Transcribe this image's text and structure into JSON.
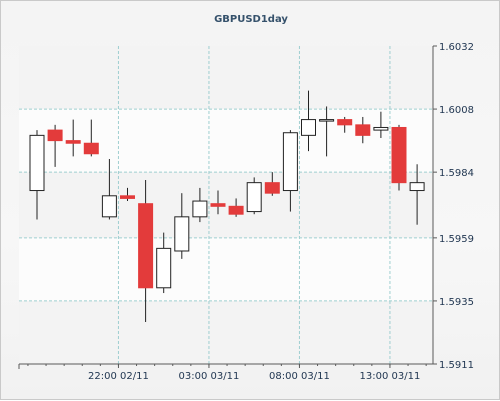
{
  "chart_data": {
    "type": "candlestick",
    "title": "GBPUSD1day",
    "y_axis_position": "right",
    "ylim": [
      1.5911,
      1.6032
    ],
    "y_ticks": [
      "1.6032",
      "1.6008",
      "1.5984",
      "1.5959",
      "1.5935",
      "1.5911"
    ],
    "x_tick_labels": [
      {
        "label": "22:00 02/11",
        "after_candle": 4.5
      },
      {
        "label": "03:00 03/11",
        "after_candle": 9.5
      },
      {
        "label": "08:00 03/11",
        "after_candle": 14.5
      },
      {
        "label": "13:00 03/11",
        "after_candle": 19.5
      }
    ],
    "grid": true,
    "colors": {
      "up_fill": "#ffffff",
      "down_fill": "#e33b3b",
      "wick": "#222222",
      "grid": "#9fcfd0",
      "plot_bg": "#fcfcfc",
      "band": "#f3f3f3",
      "axis": "#5a5a5a"
    },
    "candles": [
      {
        "open": 1.5977,
        "high": 1.6,
        "low": 1.5966,
        "close": 1.5998
      },
      {
        "open": 1.6,
        "high": 1.6002,
        "low": 1.5986,
        "close": 1.5996
      },
      {
        "open": 1.5996,
        "high": 1.6004,
        "low": 1.599,
        "close": 1.5995
      },
      {
        "open": 1.5995,
        "high": 1.6004,
        "low": 1.599,
        "close": 1.5991
      },
      {
        "open": 1.5967,
        "high": 1.5989,
        "low": 1.5966,
        "close": 1.5975
      },
      {
        "open": 1.5975,
        "high": 1.5978,
        "low": 1.5973,
        "close": 1.5974
      },
      {
        "open": 1.5972,
        "high": 1.5981,
        "low": 1.5927,
        "close": 1.594
      },
      {
        "open": 1.594,
        "high": 1.5961,
        "low": 1.5938,
        "close": 1.5955
      },
      {
        "open": 1.5954,
        "high": 1.5976,
        "low": 1.5951,
        "close": 1.5967
      },
      {
        "open": 1.5967,
        "high": 1.5978,
        "low": 1.5965,
        "close": 1.5973
      },
      {
        "open": 1.5972,
        "high": 1.5977,
        "low": 1.5968,
        "close": 1.5971
      },
      {
        "open": 1.5971,
        "high": 1.5974,
        "low": 1.5967,
        "close": 1.5968
      },
      {
        "open": 1.5969,
        "high": 1.5982,
        "low": 1.5968,
        "close": 1.598
      },
      {
        "open": 1.598,
        "high": 1.5984,
        "low": 1.5975,
        "close": 1.5976
      },
      {
        "open": 1.5977,
        "high": 1.6,
        "low": 1.5969,
        "close": 1.5999
      },
      {
        "open": 1.5998,
        "high": 1.6015,
        "low": 1.5992,
        "close": 1.6004
      },
      {
        "open": 1.6004,
        "high": 1.6009,
        "low": 1.599,
        "close": 1.6004
      },
      {
        "open": 1.6004,
        "high": 1.6005,
        "low": 1.5999,
        "close": 1.6002
      },
      {
        "open": 1.6002,
        "high": 1.6005,
        "low": 1.5995,
        "close": 1.5998
      },
      {
        "open": 1.6,
        "high": 1.6007,
        "low": 1.5997,
        "close": 1.6001
      },
      {
        "open": 1.6001,
        "high": 1.6002,
        "low": 1.5977,
        "close": 1.598
      },
      {
        "open": 1.5977,
        "high": 1.5987,
        "low": 1.5964,
        "close": 1.598
      }
    ]
  }
}
